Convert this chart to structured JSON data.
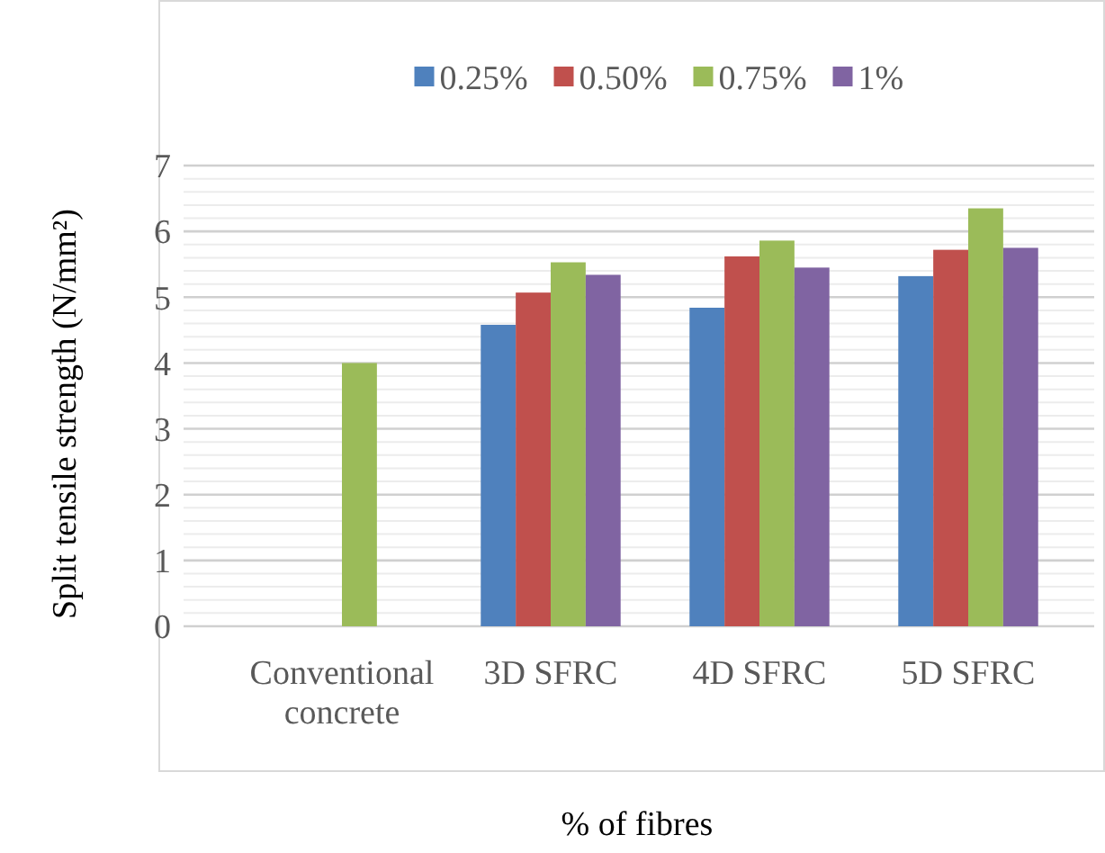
{
  "chart_data": {
    "type": "bar",
    "xlabel": "% of fibres",
    "ylabel": "Split tensile strength (N/mm²)",
    "categories": [
      "Conventional concrete",
      "3D SFRC",
      "4D SFRC",
      "5D SFRC"
    ],
    "series": [
      {
        "name": "0.25%",
        "color": "#4f81bd",
        "values": [
          null,
          4.58,
          4.84,
          5.32
        ]
      },
      {
        "name": "0.50%",
        "color": "#c0504d",
        "values": [
          null,
          5.07,
          5.62,
          5.72
        ]
      },
      {
        "name": "0.75%",
        "color": "#9bbb59",
        "values": [
          4.0,
          5.53,
          5.86,
          6.35
        ]
      },
      {
        "name": "1%",
        "color": "#8064a2",
        "values": [
          null,
          5.34,
          5.45,
          5.75
        ]
      }
    ],
    "ylim": [
      0,
      7
    ],
    "yticks": [
      0,
      {
        "value": 0.2,
        "label": null
      },
      {
        "value": 0.4,
        "label": null
      },
      {
        "value": 0.6,
        "label": null
      },
      {
        "value": 0.8,
        "label": null
      },
      1,
      {
        "value": 1.2,
        "label": null
      },
      {
        "value": 1.4,
        "label": null
      },
      {
        "value": 1.6,
        "label": null
      },
      {
        "value": 1.8,
        "label": null
      },
      2,
      {
        "value": 2.2,
        "label": null
      },
      {
        "value": 2.4,
        "label": null
      },
      {
        "value": 2.6,
        "label": null
      },
      {
        "value": 2.8,
        "label": null
      },
      3,
      {
        "value": 3.2,
        "label": null
      },
      {
        "value": 3.4,
        "label": null
      },
      {
        "value": 3.6,
        "label": null
      },
      {
        "value": 3.8,
        "label": null
      },
      4,
      {
        "value": 4.2,
        "label": null
      },
      {
        "value": 4.4,
        "label": null
      },
      {
        "value": 4.6,
        "label": null
      },
      {
        "value": 4.8,
        "label": null
      },
      5,
      {
        "value": 5.2,
        "label": null
      },
      {
        "value": 5.4,
        "label": null
      },
      {
        "value": 5.6,
        "label": null
      },
      {
        "value": 5.8,
        "label": null
      },
      6,
      {
        "value": 6.2,
        "label": null
      },
      {
        "value": 6.4,
        "label": null
      },
      {
        "value": 6.6,
        "label": null
      },
      {
        "value": 6.8,
        "label": null
      },
      7
    ],
    "grid": "y",
    "legend": "top"
  }
}
